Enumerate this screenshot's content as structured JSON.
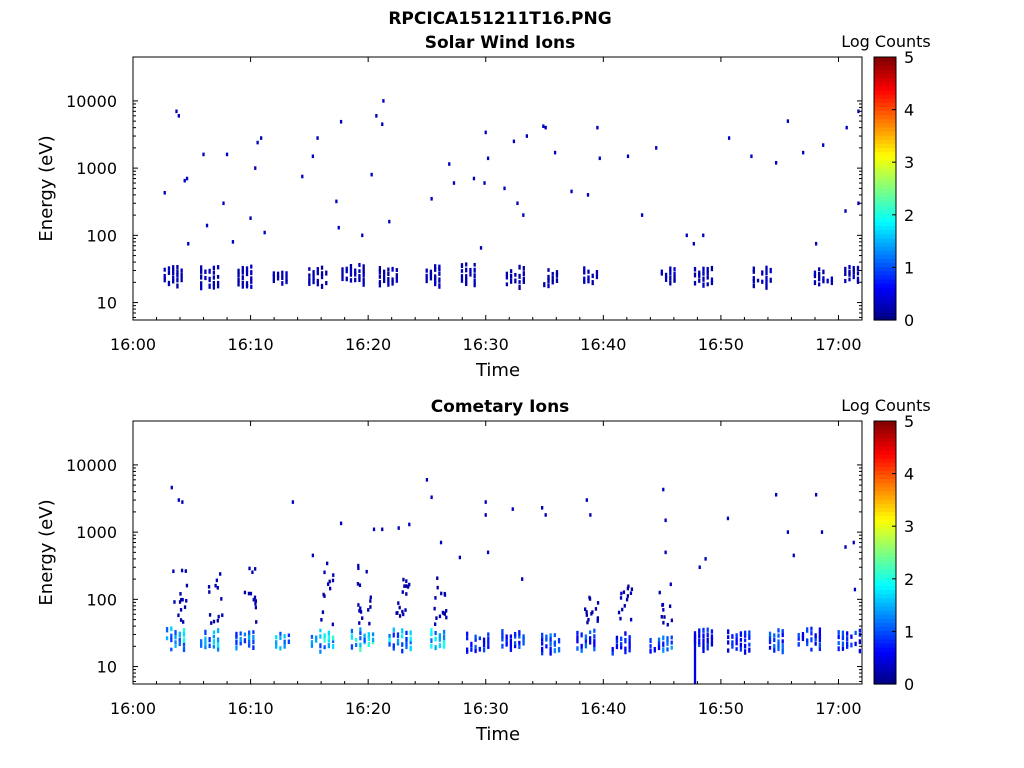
{
  "figure": {
    "title": "RPCICA151211T16.PNG"
  },
  "chart_data": [
    {
      "type": "heatmap",
      "title": "Solar Wind Ions",
      "xlabel": "Time",
      "ylabel": "Energy (eV)",
      "x_ticks": [
        "16:00",
        "16:10",
        "16:20",
        "16:30",
        "16:40",
        "16:50",
        "17:00"
      ],
      "x_range_minutes": [
        0,
        62
      ],
      "y_scale": "log",
      "y_ticks": [
        "10",
        "100",
        "1000",
        "10000"
      ],
      "y_range": [
        5.5,
        45000
      ],
      "grid": false,
      "colorbar": {
        "label": "Log Counts",
        "ticks": [
          "0",
          "1",
          "2",
          "3",
          "4",
          "5"
        ],
        "range": [
          0,
          5
        ],
        "colormap": "jet"
      },
      "clusters": [
        {
          "t": 3.5,
          "e": 28,
          "v": 0.3
        },
        {
          "t": 6.6,
          "e": 26,
          "v": 0.3
        },
        {
          "t": 9.6,
          "e": 26,
          "v": 0.3
        },
        {
          "t": 12.6,
          "e": 26,
          "v": 0.3
        },
        {
          "t": 15.8,
          "e": 26,
          "v": 0.3
        },
        {
          "t": 18.8,
          "e": 28,
          "v": 0.3
        },
        {
          "t": 21.8,
          "e": 27,
          "v": 0.3
        },
        {
          "t": 25.6,
          "e": 28,
          "v": 0.3
        },
        {
          "t": 28.6,
          "e": 28,
          "v": 0.3
        },
        {
          "t": 32.6,
          "e": 27,
          "v": 0.3
        },
        {
          "t": 35.6,
          "e": 25,
          "v": 0.3
        },
        {
          "t": 39.0,
          "e": 27,
          "v": 0.3
        },
        {
          "t": 45.6,
          "e": 28,
          "v": 0.3
        },
        {
          "t": 48.6,
          "e": 27,
          "v": 0.3
        },
        {
          "t": 53.6,
          "e": 26,
          "v": 0.3
        },
        {
          "t": 58.8,
          "e": 26,
          "v": 0.3
        },
        {
          "t": 61.2,
          "e": 28,
          "v": 0.3
        }
      ],
      "points": [
        {
          "t": 2.6,
          "e": 430
        },
        {
          "t": 3.6,
          "e": 7000
        },
        {
          "t": 3.8,
          "e": 6000
        },
        {
          "t": 4.3,
          "e": 650
        },
        {
          "t": 4.5,
          "e": 700
        },
        {
          "t": 4.6,
          "e": 75
        },
        {
          "t": 5.9,
          "e": 1600
        },
        {
          "t": 6.2,
          "e": 140
        },
        {
          "t": 7.6,
          "e": 300
        },
        {
          "t": 7.9,
          "e": 1600
        },
        {
          "t": 8.4,
          "e": 80
        },
        {
          "t": 9.9,
          "e": 180
        },
        {
          "t": 10.3,
          "e": 1000
        },
        {
          "t": 10.5,
          "e": 2400
        },
        {
          "t": 10.8,
          "e": 2800
        },
        {
          "t": 11.1,
          "e": 110
        },
        {
          "t": 14.3,
          "e": 750
        },
        {
          "t": 15.2,
          "e": 1500
        },
        {
          "t": 15.6,
          "e": 2800
        },
        {
          "t": 17.2,
          "e": 320
        },
        {
          "t": 17.4,
          "e": 130
        },
        {
          "t": 17.6,
          "e": 4900
        },
        {
          "t": 19.4,
          "e": 100
        },
        {
          "t": 20.2,
          "e": 800
        },
        {
          "t": 20.6,
          "e": 6000
        },
        {
          "t": 21.1,
          "e": 4500
        },
        {
          "t": 21.2,
          "e": 10000
        },
        {
          "t": 21.7,
          "e": 160
        },
        {
          "t": 25.3,
          "e": 350
        },
        {
          "t": 26.8,
          "e": 1150
        },
        {
          "t": 27.2,
          "e": 600
        },
        {
          "t": 28.9,
          "e": 700
        },
        {
          "t": 29.5,
          "e": 65
        },
        {
          "t": 29.8,
          "e": 600
        },
        {
          "t": 29.9,
          "e": 3400
        },
        {
          "t": 30.1,
          "e": 1400
        },
        {
          "t": 31.5,
          "e": 500
        },
        {
          "t": 32.3,
          "e": 2500
        },
        {
          "t": 32.6,
          "e": 300
        },
        {
          "t": 33.1,
          "e": 200
        },
        {
          "t": 33.4,
          "e": 3000
        },
        {
          "t": 34.8,
          "e": 4200
        },
        {
          "t": 35.0,
          "e": 4000
        },
        {
          "t": 35.8,
          "e": 1700
        },
        {
          "t": 37.2,
          "e": 450
        },
        {
          "t": 38.6,
          "e": 400
        },
        {
          "t": 39.4,
          "e": 4000
        },
        {
          "t": 39.6,
          "e": 1400
        },
        {
          "t": 42.0,
          "e": 1500
        },
        {
          "t": 43.2,
          "e": 200
        },
        {
          "t": 44.4,
          "e": 2000
        },
        {
          "t": 47.0,
          "e": 100
        },
        {
          "t": 47.6,
          "e": 75
        },
        {
          "t": 48.4,
          "e": 100
        },
        {
          "t": 50.6,
          "e": 2800
        },
        {
          "t": 52.5,
          "e": 1500
        },
        {
          "t": 54.6,
          "e": 1200
        },
        {
          "t": 55.6,
          "e": 5000
        },
        {
          "t": 56.9,
          "e": 1700
        },
        {
          "t": 58.0,
          "e": 75
        },
        {
          "t": 58.6,
          "e": 2200
        },
        {
          "t": 60.5,
          "e": 230
        },
        {
          "t": 60.6,
          "e": 4000
        },
        {
          "t": 61.6,
          "e": 300
        },
        {
          "t": 61.6,
          "e": 7000
        }
      ]
    },
    {
      "type": "heatmap",
      "title": "Cometary Ions",
      "xlabel": "Time",
      "ylabel": "Energy (eV)",
      "x_ticks": [
        "16:00",
        "16:10",
        "16:20",
        "16:30",
        "16:40",
        "16:50",
        "17:00"
      ],
      "x_range_minutes": [
        0,
        62
      ],
      "y_scale": "log",
      "y_ticks": [
        "10",
        "100",
        "1000",
        "10000"
      ],
      "y_range": [
        5.5,
        45000
      ],
      "grid": false,
      "colorbar": {
        "label": "Log Counts",
        "ticks": [
          "0",
          "1",
          "2",
          "3",
          "4",
          "5"
        ],
        "range": [
          0,
          5
        ],
        "colormap": "jet"
      },
      "clusters": [
        {
          "t": 3.7,
          "e": 28,
          "v": 1.7
        },
        {
          "t": 6.6,
          "e": 27,
          "v": 1.6
        },
        {
          "t": 9.6,
          "e": 27,
          "v": 1.2
        },
        {
          "t": 12.8,
          "e": 26,
          "v": 1.5
        },
        {
          "t": 16.2,
          "e": 26,
          "v": 1.8
        },
        {
          "t": 19.6,
          "e": 28,
          "v": 1.9
        },
        {
          "t": 22.8,
          "e": 27,
          "v": 1.6
        },
        {
          "t": 26.0,
          "e": 27,
          "v": 1.7
        },
        {
          "t": 29.4,
          "e": 24,
          "v": 0.9
        },
        {
          "t": 32.4,
          "e": 27,
          "v": 1.0
        },
        {
          "t": 35.6,
          "e": 24,
          "v": 1.1
        },
        {
          "t": 38.6,
          "e": 27,
          "v": 1.0
        },
        {
          "t": 41.6,
          "e": 24,
          "v": 0.8
        },
        {
          "t": 45.0,
          "e": 24,
          "v": 1.2
        },
        {
          "t": 48.6,
          "e": 27,
          "v": 0.8
        },
        {
          "t": 51.6,
          "e": 26,
          "v": 0.8
        },
        {
          "t": 54.8,
          "e": 27,
          "v": 1.0
        },
        {
          "t": 57.6,
          "e": 28,
          "v": 0.9
        },
        {
          "t": 61.0,
          "e": 27,
          "v": 0.9
        }
      ],
      "stacks": [
        {
          "t": 3.9,
          "lo": 40,
          "hi": 350
        },
        {
          "t": 6.9,
          "lo": 40,
          "hi": 300
        },
        {
          "t": 10.0,
          "lo": 45,
          "hi": 300
        },
        {
          "t": 16.4,
          "lo": 40,
          "hi": 400
        },
        {
          "t": 19.6,
          "lo": 40,
          "hi": 360
        },
        {
          "t": 22.8,
          "lo": 50,
          "hi": 200
        },
        {
          "t": 26.0,
          "lo": 40,
          "hi": 250
        },
        {
          "t": 38.9,
          "lo": 45,
          "hi": 120
        },
        {
          "t": 41.8,
          "lo": 45,
          "hi": 180
        },
        {
          "t": 45.2,
          "lo": 40,
          "hi": 200
        }
      ],
      "points": [
        {
          "t": 3.2,
          "e": 4600
        },
        {
          "t": 3.8,
          "e": 3000
        },
        {
          "t": 4.1,
          "e": 2800
        },
        {
          "t": 13.5,
          "e": 2800
        },
        {
          "t": 15.2,
          "e": 450
        },
        {
          "t": 17.6,
          "e": 1350
        },
        {
          "t": 20.4,
          "e": 1100
        },
        {
          "t": 21.1,
          "e": 1100
        },
        {
          "t": 22.5,
          "e": 1150
        },
        {
          "t": 23.4,
          "e": 1300
        },
        {
          "t": 24.9,
          "e": 6000
        },
        {
          "t": 25.3,
          "e": 3300
        },
        {
          "t": 26.1,
          "e": 700
        },
        {
          "t": 27.7,
          "e": 420
        },
        {
          "t": 29.9,
          "e": 2800
        },
        {
          "t": 29.9,
          "e": 1800
        },
        {
          "t": 30.1,
          "e": 500
        },
        {
          "t": 32.2,
          "e": 2200
        },
        {
          "t": 33.0,
          "e": 200
        },
        {
          "t": 34.7,
          "e": 2300
        },
        {
          "t": 35.0,
          "e": 1800
        },
        {
          "t": 38.5,
          "e": 3000
        },
        {
          "t": 38.8,
          "e": 1800
        },
        {
          "t": 45.0,
          "e": 4300
        },
        {
          "t": 45.2,
          "e": 1500
        },
        {
          "t": 45.2,
          "e": 500
        },
        {
          "t": 48.1,
          "e": 300
        },
        {
          "t": 48.6,
          "e": 400
        },
        {
          "t": 50.5,
          "e": 1600
        },
        {
          "t": 54.6,
          "e": 3600
        },
        {
          "t": 55.6,
          "e": 1000
        },
        {
          "t": 56.1,
          "e": 450
        },
        {
          "t": 58.0,
          "e": 3600
        },
        {
          "t": 58.5,
          "e": 1000
        },
        {
          "t": 60.5,
          "e": 600
        },
        {
          "t": 61.2,
          "e": 700
        },
        {
          "t": 61.3,
          "e": 140
        }
      ],
      "spikes": [
        {
          "t": 47.7,
          "lo": 5.6,
          "hi": 30
        }
      ]
    }
  ]
}
